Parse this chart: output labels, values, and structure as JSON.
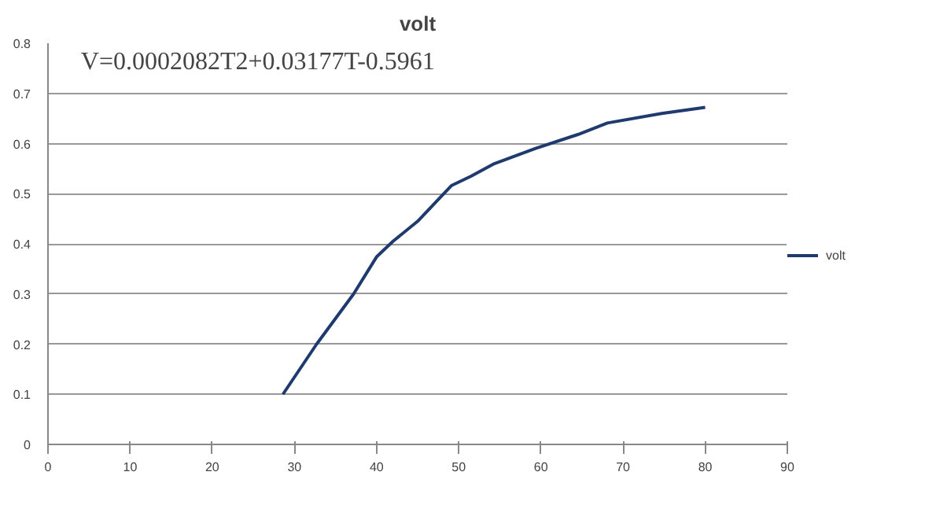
{
  "chart_data": {
    "type": "line",
    "title": "volt",
    "annotations": [
      "V=0.0002082T2+0.03177T-0.5961"
    ],
    "series": [
      {
        "name": "volt",
        "color": "#1f3a6e",
        "x": [
          28.6,
          32.7,
          37.2,
          40,
          42,
          45,
          49.1,
          51.5,
          54.2,
          59.3,
          64.5,
          68.1,
          74.7,
          80
        ],
        "values": [
          0.1,
          0.2,
          0.3,
          0.374,
          0.405,
          0.445,
          0.516,
          0.535,
          0.559,
          0.59,
          0.618,
          0.641,
          0.66,
          0.672
        ]
      }
    ],
    "xlim": [
      0,
      90
    ],
    "xticks": [
      0,
      10,
      20,
      30,
      40,
      50,
      60,
      70,
      80,
      90
    ],
    "ylim": [
      0,
      0.8
    ],
    "yticks": [
      0,
      0.1,
      0.2,
      0.3,
      0.4,
      0.5,
      0.6,
      0.7,
      0.8
    ],
    "grid": "y",
    "legend": "right",
    "marker": "none",
    "line_style": "solid"
  }
}
